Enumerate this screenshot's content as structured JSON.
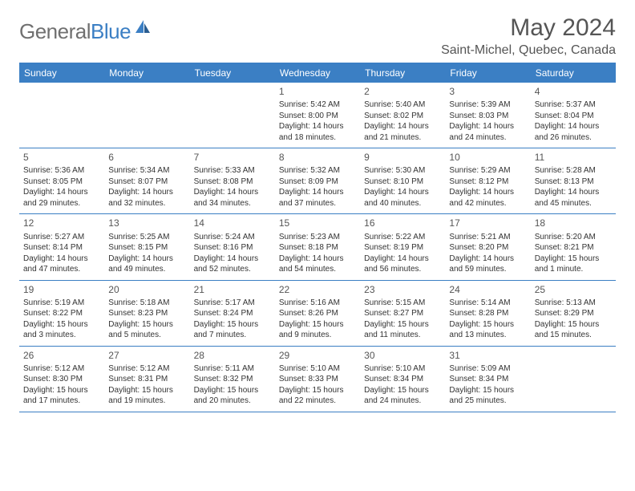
{
  "logo": {
    "text1": "General",
    "text2": "Blue"
  },
  "title": "May 2024",
  "location": "Saint-Michel, Quebec, Canada",
  "daysOfWeek": [
    "Sunday",
    "Monday",
    "Tuesday",
    "Wednesday",
    "Thursday",
    "Friday",
    "Saturday"
  ],
  "colors": {
    "accent": "#3b7fc4",
    "headerText": "#ffffff",
    "bodyText": "#333333",
    "muted": "#555555"
  },
  "weeks": [
    [
      null,
      null,
      null,
      {
        "n": "1",
        "sr": "5:42 AM",
        "ss": "8:00 PM",
        "d1": "Daylight: 14 hours",
        "d2": "and 18 minutes."
      },
      {
        "n": "2",
        "sr": "5:40 AM",
        "ss": "8:02 PM",
        "d1": "Daylight: 14 hours",
        "d2": "and 21 minutes."
      },
      {
        "n": "3",
        "sr": "5:39 AM",
        "ss": "8:03 PM",
        "d1": "Daylight: 14 hours",
        "d2": "and 24 minutes."
      },
      {
        "n": "4",
        "sr": "5:37 AM",
        "ss": "8:04 PM",
        "d1": "Daylight: 14 hours",
        "d2": "and 26 minutes."
      }
    ],
    [
      {
        "n": "5",
        "sr": "5:36 AM",
        "ss": "8:05 PM",
        "d1": "Daylight: 14 hours",
        "d2": "and 29 minutes."
      },
      {
        "n": "6",
        "sr": "5:34 AM",
        "ss": "8:07 PM",
        "d1": "Daylight: 14 hours",
        "d2": "and 32 minutes."
      },
      {
        "n": "7",
        "sr": "5:33 AM",
        "ss": "8:08 PM",
        "d1": "Daylight: 14 hours",
        "d2": "and 34 minutes."
      },
      {
        "n": "8",
        "sr": "5:32 AM",
        "ss": "8:09 PM",
        "d1": "Daylight: 14 hours",
        "d2": "and 37 minutes."
      },
      {
        "n": "9",
        "sr": "5:30 AM",
        "ss": "8:10 PM",
        "d1": "Daylight: 14 hours",
        "d2": "and 40 minutes."
      },
      {
        "n": "10",
        "sr": "5:29 AM",
        "ss": "8:12 PM",
        "d1": "Daylight: 14 hours",
        "d2": "and 42 minutes."
      },
      {
        "n": "11",
        "sr": "5:28 AM",
        "ss": "8:13 PM",
        "d1": "Daylight: 14 hours",
        "d2": "and 45 minutes."
      }
    ],
    [
      {
        "n": "12",
        "sr": "5:27 AM",
        "ss": "8:14 PM",
        "d1": "Daylight: 14 hours",
        "d2": "and 47 minutes."
      },
      {
        "n": "13",
        "sr": "5:25 AM",
        "ss": "8:15 PM",
        "d1": "Daylight: 14 hours",
        "d2": "and 49 minutes."
      },
      {
        "n": "14",
        "sr": "5:24 AM",
        "ss": "8:16 PM",
        "d1": "Daylight: 14 hours",
        "d2": "and 52 minutes."
      },
      {
        "n": "15",
        "sr": "5:23 AM",
        "ss": "8:18 PM",
        "d1": "Daylight: 14 hours",
        "d2": "and 54 minutes."
      },
      {
        "n": "16",
        "sr": "5:22 AM",
        "ss": "8:19 PM",
        "d1": "Daylight: 14 hours",
        "d2": "and 56 minutes."
      },
      {
        "n": "17",
        "sr": "5:21 AM",
        "ss": "8:20 PM",
        "d1": "Daylight: 14 hours",
        "d2": "and 59 minutes."
      },
      {
        "n": "18",
        "sr": "5:20 AM",
        "ss": "8:21 PM",
        "d1": "Daylight: 15 hours",
        "d2": "and 1 minute."
      }
    ],
    [
      {
        "n": "19",
        "sr": "5:19 AM",
        "ss": "8:22 PM",
        "d1": "Daylight: 15 hours",
        "d2": "and 3 minutes."
      },
      {
        "n": "20",
        "sr": "5:18 AM",
        "ss": "8:23 PM",
        "d1": "Daylight: 15 hours",
        "d2": "and 5 minutes."
      },
      {
        "n": "21",
        "sr": "5:17 AM",
        "ss": "8:24 PM",
        "d1": "Daylight: 15 hours",
        "d2": "and 7 minutes."
      },
      {
        "n": "22",
        "sr": "5:16 AM",
        "ss": "8:26 PM",
        "d1": "Daylight: 15 hours",
        "d2": "and 9 minutes."
      },
      {
        "n": "23",
        "sr": "5:15 AM",
        "ss": "8:27 PM",
        "d1": "Daylight: 15 hours",
        "d2": "and 11 minutes."
      },
      {
        "n": "24",
        "sr": "5:14 AM",
        "ss": "8:28 PM",
        "d1": "Daylight: 15 hours",
        "d2": "and 13 minutes."
      },
      {
        "n": "25",
        "sr": "5:13 AM",
        "ss": "8:29 PM",
        "d1": "Daylight: 15 hours",
        "d2": "and 15 minutes."
      }
    ],
    [
      {
        "n": "26",
        "sr": "5:12 AM",
        "ss": "8:30 PM",
        "d1": "Daylight: 15 hours",
        "d2": "and 17 minutes."
      },
      {
        "n": "27",
        "sr": "5:12 AM",
        "ss": "8:31 PM",
        "d1": "Daylight: 15 hours",
        "d2": "and 19 minutes."
      },
      {
        "n": "28",
        "sr": "5:11 AM",
        "ss": "8:32 PM",
        "d1": "Daylight: 15 hours",
        "d2": "and 20 minutes."
      },
      {
        "n": "29",
        "sr": "5:10 AM",
        "ss": "8:33 PM",
        "d1": "Daylight: 15 hours",
        "d2": "and 22 minutes."
      },
      {
        "n": "30",
        "sr": "5:10 AM",
        "ss": "8:34 PM",
        "d1": "Daylight: 15 hours",
        "d2": "and 24 minutes."
      },
      {
        "n": "31",
        "sr": "5:09 AM",
        "ss": "8:34 PM",
        "d1": "Daylight: 15 hours",
        "d2": "and 25 minutes."
      },
      null
    ]
  ],
  "labels": {
    "sunrise": "Sunrise: ",
    "sunset": "Sunset: "
  }
}
